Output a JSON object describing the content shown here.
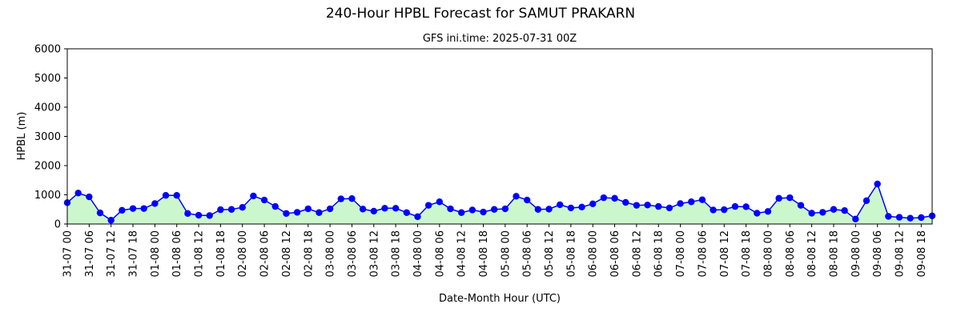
{
  "chart_data": {
    "type": "line",
    "title": "240-Hour HPBL Forecast for SAMUT PRAKARN",
    "subtitle": "GFS ini.time: 2025-07-31 00Z",
    "xlabel": "Date-Month Hour (UTC)",
    "ylabel": "HPBL (m)",
    "ylim": [
      0,
      6000
    ],
    "yticks": [
      0,
      1000,
      2000,
      3000,
      4000,
      5000,
      6000
    ],
    "grid": false,
    "line_color": "#0000ff",
    "fill_color": "#ccf7cc",
    "x_step_hours": 3,
    "xtick_labels": [
      "31-07 00",
      "31-07 06",
      "31-07 12",
      "31-07 18",
      "01-08 00",
      "01-08 06",
      "01-08 12",
      "01-08 18",
      "02-08 00",
      "02-08 06",
      "02-08 12",
      "02-08 18",
      "03-08 00",
      "03-08 06",
      "03-08 12",
      "03-08 18",
      "04-08 00",
      "04-08 06",
      "04-08 12",
      "04-08 18",
      "05-08 00",
      "05-08 06",
      "05-08 12",
      "05-08 18",
      "06-08 00",
      "06-08 06",
      "06-08 12",
      "06-08 18",
      "07-08 00",
      "07-08 06",
      "07-08 12",
      "07-08 18",
      "08-08 00",
      "08-08 06",
      "08-08 12",
      "08-08 18",
      "09-08 00",
      "09-08 06",
      "09-08 12",
      "09-08 18"
    ],
    "values": [
      730,
      1060,
      930,
      380,
      130,
      470,
      530,
      530,
      700,
      980,
      980,
      360,
      300,
      290,
      490,
      500,
      570,
      960,
      820,
      600,
      360,
      400,
      520,
      390,
      520,
      860,
      870,
      510,
      440,
      540,
      540,
      390,
      250,
      640,
      760,
      520,
      390,
      480,
      410,
      500,
      520,
      950,
      820,
      500,
      510,
      660,
      550,
      580,
      690,
      900,
      880,
      740,
      640,
      650,
      600,
      550,
      700,
      760,
      830,
      480,
      490,
      600,
      590,
      370,
      430,
      880,
      900,
      640,
      370,
      400,
      500,
      460,
      170,
      800,
      1370,
      260,
      230,
      200,
      220,
      280
    ]
  }
}
